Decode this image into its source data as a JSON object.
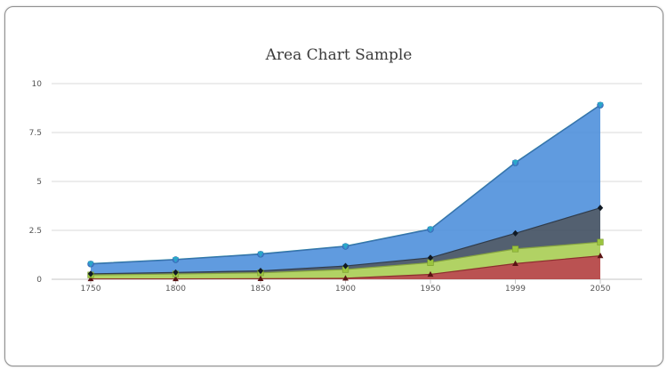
{
  "chart_data": {
    "type": "area",
    "stacked": true,
    "title": "Area Chart Sample",
    "categories": [
      "1750",
      "1800",
      "1850",
      "1900",
      "1950",
      "1999",
      "2050"
    ],
    "y_ticks": [
      "0",
      "2.5",
      "5",
      "7.5",
      "10"
    ],
    "ylim": [
      0,
      10
    ],
    "grid": true,
    "series": [
      {
        "color": "#b03a3a",
        "marker": "triangle",
        "values": [
          0.02,
          0.02,
          0.03,
          0.05,
          0.25,
          0.8,
          1.2
        ]
      },
      {
        "color": "#a6cc4f",
        "marker": "square",
        "values": [
          0.2,
          0.25,
          0.3,
          0.45,
          0.6,
          0.75,
          0.7
        ]
      },
      {
        "color": "#3b4a5c",
        "marker": "diamond",
        "values": [
          0.06,
          0.08,
          0.1,
          0.18,
          0.25,
          0.8,
          1.75
        ]
      },
      {
        "color": "#4a8ddb",
        "marker": "circle",
        "values": [
          0.5,
          0.65,
          0.85,
          1.0,
          1.45,
          3.6,
          5.25
        ]
      },
      {
        "color": "#2aa8c8",
        "marker": "triangle-down",
        "values": [
          0.02,
          0.02,
          0.02,
          0.02,
          0.02,
          0.02,
          0.02
        ]
      }
    ]
  }
}
